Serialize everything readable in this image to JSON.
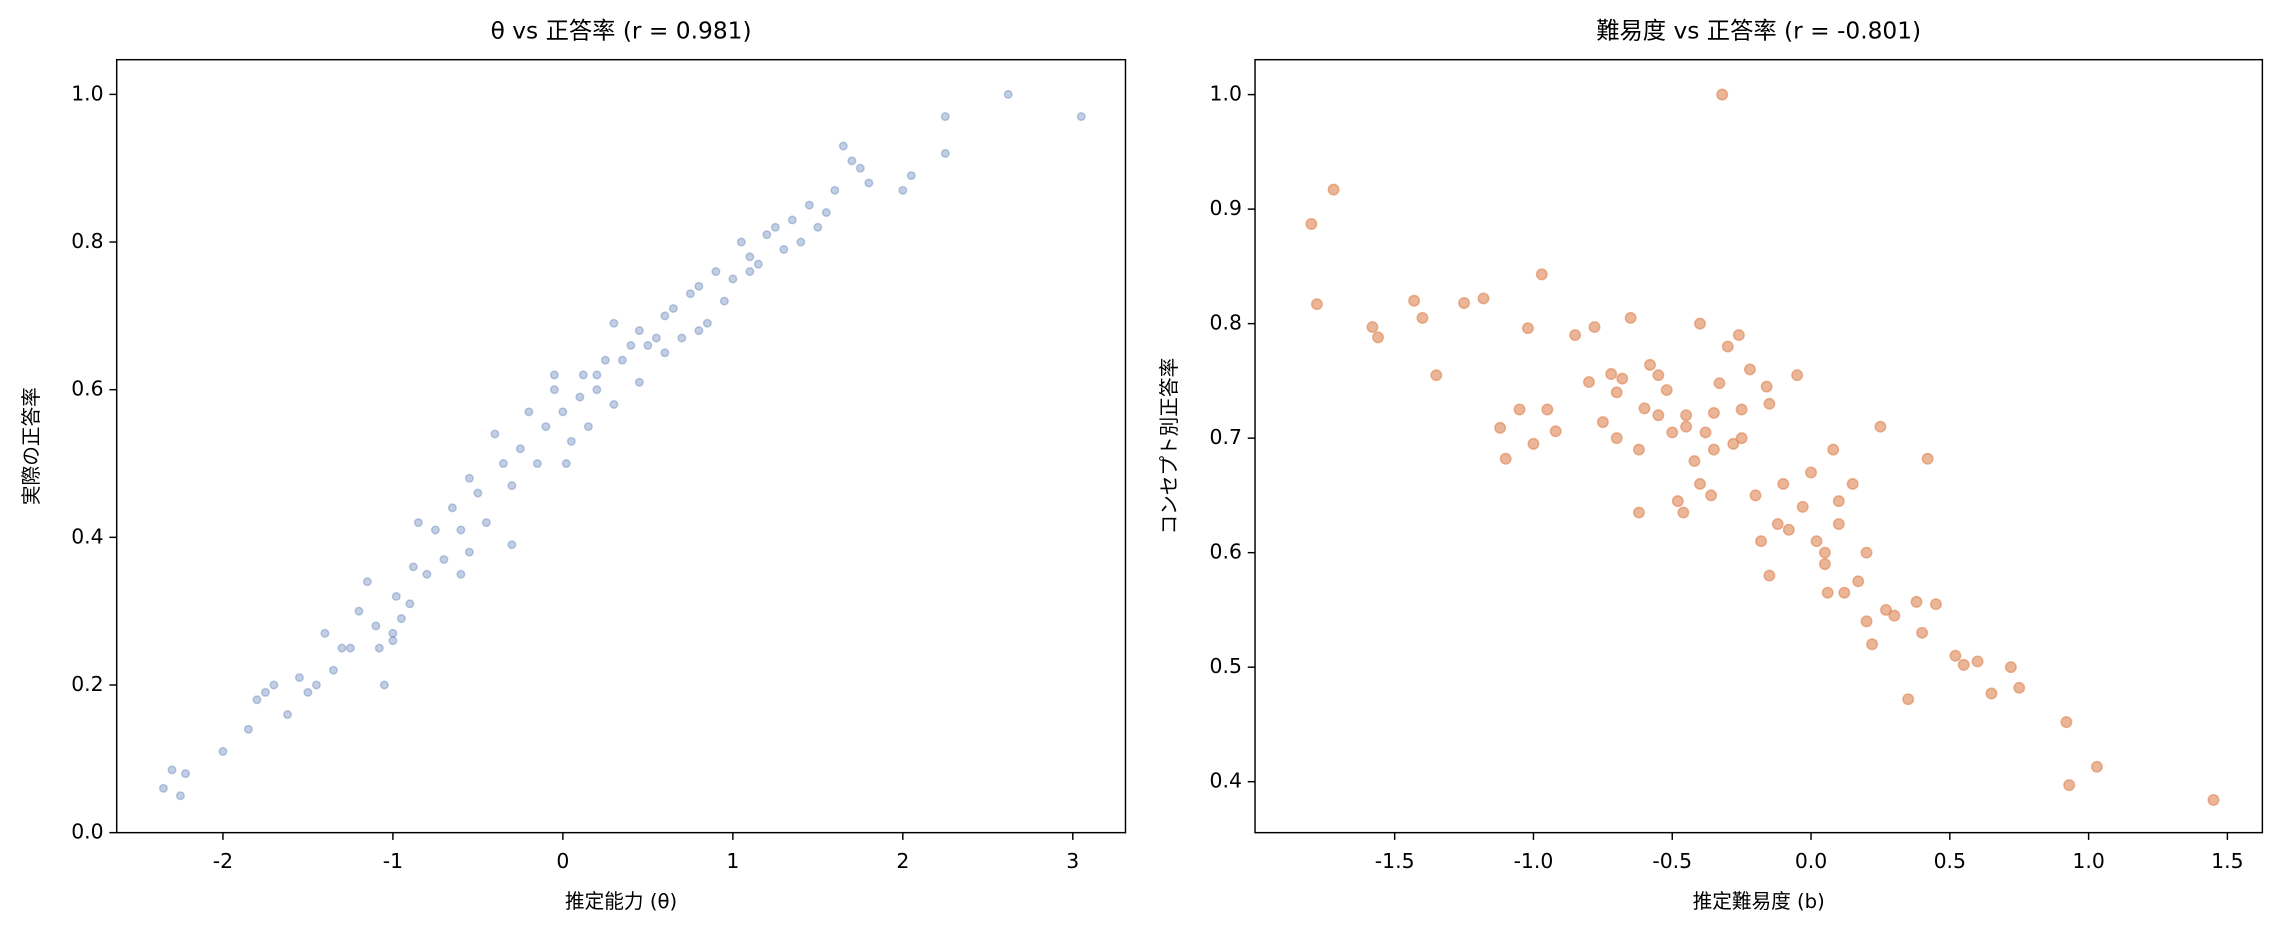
{
  "chart_data": [
    {
      "type": "scatter",
      "title": "θ  vs 正答率 (r = 0.981)",
      "x_label": "推定能力 (θ)",
      "y_label": "実際の正答率",
      "color": "#4c72b0",
      "opacity": 0.35,
      "marker_size": 2.6,
      "xlim": [
        -2.625,
        3.31
      ],
      "ylim": [
        0,
        1.047
      ],
      "xticks": [
        -2,
        -1,
        0,
        1,
        2,
        3
      ],
      "yticks": [
        {
          "value": 0,
          "label": "0.0"
        },
        0.2,
        0.4,
        0.6,
        0.8,
        {
          "value": 1,
          "label": "1.0"
        }
      ],
      "x": [
        -2.35,
        -2.3,
        -2.25,
        -2.22,
        -2.0,
        -1.85,
        -1.8,
        -1.75,
        -1.7,
        -1.62,
        -1.55,
        -1.5,
        -1.45,
        -1.4,
        -1.35,
        -1.3,
        -1.25,
        -1.2,
        -1.15,
        -1.1,
        -1.08,
        -1.05,
        -1.0,
        -0.98,
        -0.95,
        -0.9,
        -0.88,
        -0.85,
        -0.8,
        -0.75,
        -0.7,
        -0.65,
        -0.6,
        -0.55,
        -0.55,
        -0.5,
        -0.45,
        -0.4,
        -0.35,
        -0.3,
        -0.25,
        -0.2,
        -0.15,
        -0.1,
        -0.05,
        0.0,
        0.02,
        0.05,
        0.1,
        0.12,
        0.15,
        0.2,
        0.25,
        0.3,
        0.35,
        0.4,
        0.45,
        0.45,
        0.5,
        0.55,
        0.6,
        0.65,
        0.7,
        0.75,
        0.8,
        0.85,
        0.9,
        0.95,
        1.0,
        1.05,
        1.1,
        1.15,
        1.2,
        1.25,
        1.3,
        1.35,
        1.4,
        1.45,
        1.5,
        1.55,
        1.6,
        1.65,
        1.7,
        1.75,
        1.8,
        2.0,
        2.05,
        2.25,
        2.25,
        2.62,
        3.05,
        -0.6,
        -0.3,
        0.2,
        0.6,
        -1.0,
        0.8,
        -0.05,
        0.3,
        1.1
      ],
      "y": [
        0.06,
        0.085,
        0.05,
        0.08,
        0.11,
        0.14,
        0.18,
        0.19,
        0.2,
        0.16,
        0.21,
        0.19,
        0.2,
        0.27,
        0.22,
        0.25,
        0.25,
        0.3,
        0.34,
        0.28,
        0.25,
        0.2,
        0.27,
        0.32,
        0.29,
        0.31,
        0.36,
        0.42,
        0.35,
        0.41,
        0.37,
        0.44,
        0.41,
        0.38,
        0.48,
        0.46,
        0.42,
        0.54,
        0.5,
        0.47,
        0.52,
        0.57,
        0.5,
        0.55,
        0.62,
        0.57,
        0.5,
        0.53,
        0.59,
        0.62,
        0.55,
        0.6,
        0.64,
        0.58,
        0.64,
        0.66,
        0.61,
        0.68,
        0.66,
        0.67,
        0.7,
        0.71,
        0.67,
        0.73,
        0.74,
        0.69,
        0.76,
        0.72,
        0.75,
        0.8,
        0.78,
        0.77,
        0.81,
        0.82,
        0.79,
        0.83,
        0.8,
        0.85,
        0.82,
        0.84,
        0.87,
        0.93,
        0.91,
        0.9,
        0.88,
        0.87,
        0.89,
        0.97,
        0.92,
        1.0,
        0.97,
        0.35,
        0.39,
        0.62,
        0.65,
        0.26,
        0.68,
        0.6,
        0.69,
        0.76
      ]
    },
    {
      "type": "scatter",
      "title": "難易度 vs 正答率 (r = -0.801)",
      "x_label": "推定難易度 (b)",
      "y_label": "コンセプト別正答率",
      "color": "#dd8452",
      "opacity": 0.6,
      "marker_size": 3.6,
      "xlim": [
        -2.003,
        1.626
      ],
      "ylim": [
        0.3555,
        1.0305
      ],
      "xticks": [
        -1.5,
        {
          "value": -1,
          "label": "-1.0"
        },
        -0.5,
        {
          "value": 0,
          "label": "0.0"
        },
        0.5,
        {
          "value": 1,
          "label": "1.0"
        },
        1.5
      ],
      "yticks": [
        0.4,
        0.5,
        0.6,
        0.7,
        0.8,
        0.9,
        {
          "value": 1,
          "label": "1.0"
        }
      ],
      "x": [
        -1.8,
        -1.78,
        -1.72,
        -1.58,
        -1.56,
        -1.43,
        -1.4,
        -1.35,
        -1.25,
        -1.18,
        -1.12,
        -1.1,
        -1.05,
        -1.02,
        -1.0,
        -0.97,
        -0.95,
        -0.92,
        -0.85,
        -0.8,
        -0.78,
        -0.75,
        -0.72,
        -0.7,
        -0.68,
        -0.65,
        -0.62,
        -0.6,
        -0.58,
        -0.55,
        -0.52,
        -0.5,
        -0.48,
        -0.46,
        -0.45,
        -0.42,
        -0.4,
        -0.38,
        -0.36,
        -0.35,
        -0.33,
        -0.32,
        -0.3,
        -0.28,
        -0.26,
        -0.25,
        -0.22,
        -0.2,
        -0.18,
        -0.16,
        -0.15,
        -0.12,
        -0.1,
        -0.08,
        -0.05,
        -0.03,
        0.0,
        0.02,
        0.05,
        0.06,
        0.08,
        0.1,
        0.12,
        0.15,
        0.17,
        0.2,
        0.22,
        0.25,
        0.27,
        0.3,
        0.35,
        0.38,
        0.42,
        0.45,
        0.52,
        0.55,
        0.6,
        0.65,
        0.72,
        0.75,
        0.92,
        0.93,
        1.03,
        1.45,
        -0.35,
        -0.55,
        -0.45,
        -0.25,
        -0.15,
        0.05,
        0.2,
        0.4,
        -0.62,
        -0.4,
        -0.7,
        0.1
      ],
      "y": [
        0.887,
        0.817,
        0.917,
        0.797,
        0.788,
        0.82,
        0.805,
        0.755,
        0.818,
        0.822,
        0.709,
        0.682,
        0.725,
        0.796,
        0.695,
        0.843,
        0.725,
        0.706,
        0.79,
        0.749,
        0.797,
        0.714,
        0.756,
        0.7,
        0.752,
        0.805,
        0.635,
        0.726,
        0.764,
        0.755,
        0.742,
        0.705,
        0.645,
        0.635,
        0.72,
        0.68,
        0.8,
        0.705,
        0.65,
        0.722,
        0.748,
        1.0,
        0.78,
        0.695,
        0.79,
        0.725,
        0.76,
        0.65,
        0.61,
        0.745,
        0.73,
        0.625,
        0.66,
        0.62,
        0.755,
        0.64,
        0.67,
        0.61,
        0.6,
        0.565,
        0.69,
        0.625,
        0.565,
        0.66,
        0.575,
        0.6,
        0.52,
        0.71,
        0.55,
        0.545,
        0.472,
        0.557,
        0.682,
        0.555,
        0.51,
        0.502,
        0.505,
        0.477,
        0.5,
        0.482,
        0.452,
        0.397,
        0.413,
        0.384,
        0.69,
        0.72,
        0.71,
        0.7,
        0.58,
        0.59,
        0.54,
        0.53,
        0.69,
        0.66,
        0.74,
        0.645
      ]
    }
  ]
}
